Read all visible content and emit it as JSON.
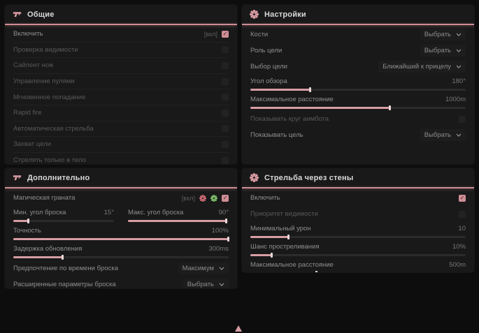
{
  "colors": {
    "accent": "#cf8d95",
    "slider_fill": "#d69da4",
    "grenade_icon_red": "#d06a74",
    "grenade_icon_green": "#7fbf6a",
    "panel_bg": "#191919",
    "page_bg": "#0d0d0d"
  },
  "panels": {
    "general": {
      "title": "Общие",
      "rows": [
        {
          "label": "Включить",
          "badge": "[вкл]",
          "checked": true
        },
        {
          "label": "Проверка видимости",
          "checked": false
        },
        {
          "label": "Сайлент нож",
          "checked": false
        },
        {
          "label": "Управление пулями",
          "checked": false
        },
        {
          "label": "Мгновенное попадание",
          "checked": false
        },
        {
          "label": "Rapid fire",
          "checked": false
        },
        {
          "label": "Автоматическая стрельба",
          "checked": false
        },
        {
          "label": "Захват цели",
          "checked": false
        },
        {
          "label": "Стрелять только в тело",
          "checked": false
        }
      ]
    },
    "settings": {
      "title": "Настройки",
      "bones": {
        "label": "Кости",
        "value": "Выбрать"
      },
      "target_role": {
        "label": "Роль цели",
        "value": "Выбрать"
      },
      "target_select": {
        "label": "Выбор цели",
        "value": "Ближайший к прицелу"
      },
      "fov": {
        "label": "Угол обзора",
        "value": "180°",
        "fill": 28
      },
      "max_distance": {
        "label": "Максимальное расстояние",
        "value": "1000m",
        "fill": 65
      },
      "show_circle": {
        "label": "Показывать круг аимбота",
        "checked": false
      },
      "show_target": {
        "label": "Показывать цель",
        "value": "Выбрать"
      }
    },
    "additional": {
      "title": "Дополнительно",
      "magic_grenade": {
        "label": "Магическая граната",
        "badge": "[вкл]",
        "checked": true
      },
      "min_angle": {
        "label": "Мин. угол броска",
        "value": "15°",
        "fill": 15
      },
      "max_angle": {
        "label": "Макс. угол броска",
        "value": "90°",
        "fill": 98
      },
      "accuracy": {
        "label": "Точность",
        "value": "100%",
        "fill": 100
      },
      "update_delay": {
        "label": "Задержка обновления",
        "value": "300ms",
        "fill": 23
      },
      "throw_time": {
        "label": "Предпочтение по времени броска",
        "value": "Максимум"
      },
      "advanced": {
        "label": "Расширенные параметры броска",
        "value": "Выбрать"
      }
    },
    "wallbang": {
      "title": "Стрельба через стены",
      "enable": {
        "label": "Включить",
        "checked": true
      },
      "visibility_priority": {
        "label": "Приоритет видимости",
        "checked": false
      },
      "min_damage": {
        "label": "Минимальный урон",
        "value": "10",
        "fill": 18
      },
      "penetration_chance": {
        "label": "Шанс простреливания",
        "value": "10%",
        "fill": 10
      },
      "max_distance": {
        "label": "Максимальное расстояние",
        "value": "500m",
        "fill": 31
      }
    }
  }
}
